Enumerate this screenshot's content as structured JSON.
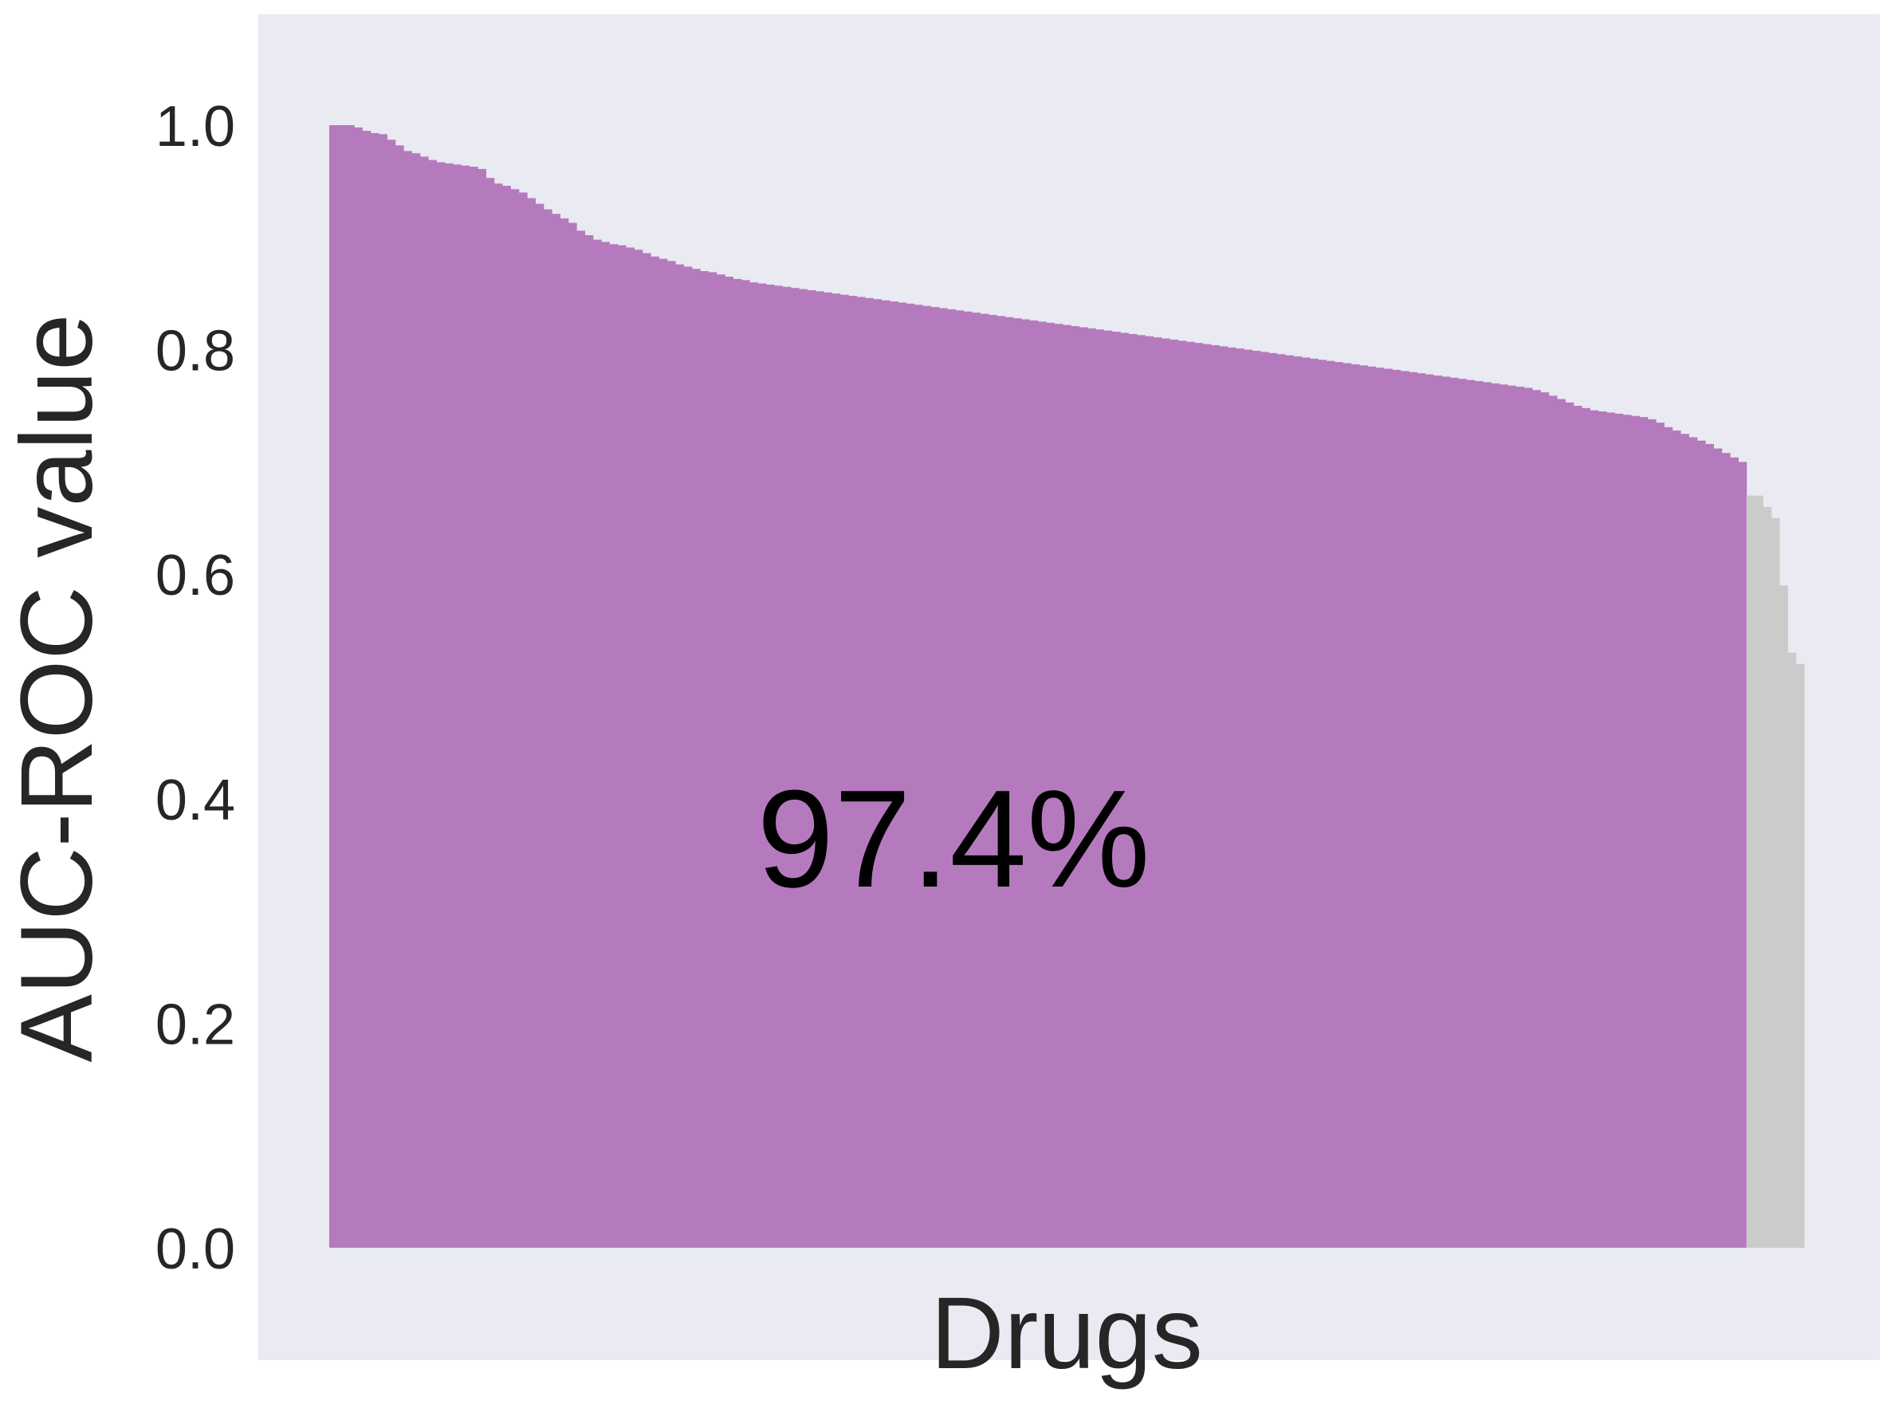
{
  "chart_data": {
    "type": "bar",
    "ylabel": "AUC-ROC value",
    "xlabel": "Drugs",
    "ylim": [
      -0.1,
      1.1
    ],
    "yticks": [
      "0.0",
      "0.2",
      "0.4",
      "0.6",
      "0.8",
      "1.0"
    ],
    "grid": false,
    "annotation": "97.4%",
    "colors": {
      "background": "#EAEAF2",
      "above_threshold": "#B57ABE",
      "below_threshold": "#CBCBCB"
    },
    "series": [
      {
        "values": [
          1.0,
          1.0,
          1.0,
          0.998,
          0.995,
          0.993,
          0.992,
          0.987,
          0.982,
          0.977,
          0.975,
          0.972,
          0.969,
          0.967,
          0.966,
          0.965,
          0.964,
          0.963,
          0.961,
          0.953,
          0.948,
          0.946,
          0.943,
          0.94,
          0.935,
          0.93,
          0.925,
          0.921,
          0.917,
          0.913,
          0.906,
          0.902,
          0.898,
          0.896,
          0.894,
          0.893,
          0.891,
          0.889,
          0.886,
          0.883,
          0.881,
          0.879,
          0.876,
          0.874,
          0.872,
          0.87,
          0.869,
          0.867,
          0.865,
          0.863,
          0.862,
          0.86,
          0.859,
          0.858,
          0.857,
          0.856,
          0.855,
          0.854,
          0.853,
          0.852,
          0.851,
          0.85,
          0.849,
          0.848,
          0.847,
          0.846,
          0.845,
          0.844,
          0.843,
          0.842,
          0.841,
          0.84,
          0.839,
          0.838,
          0.837,
          0.836,
          0.835,
          0.834,
          0.833,
          0.832,
          0.831,
          0.83,
          0.829,
          0.828,
          0.827,
          0.826,
          0.825,
          0.824,
          0.823,
          0.822,
          0.821,
          0.82,
          0.819,
          0.818,
          0.817,
          0.816,
          0.815,
          0.814,
          0.813,
          0.812,
          0.811,
          0.81,
          0.809,
          0.808,
          0.807,
          0.806,
          0.805,
          0.804,
          0.803,
          0.802,
          0.801,
          0.8,
          0.799,
          0.798,
          0.797,
          0.796,
          0.795,
          0.794,
          0.793,
          0.792,
          0.791,
          0.79,
          0.789,
          0.788,
          0.787,
          0.786,
          0.785,
          0.784,
          0.783,
          0.782,
          0.781,
          0.78,
          0.779,
          0.778,
          0.777,
          0.776,
          0.775,
          0.774,
          0.773,
          0.772,
          0.771,
          0.77,
          0.769,
          0.768,
          0.767,
          0.766,
          0.764,
          0.762,
          0.759,
          0.756,
          0.753,
          0.75,
          0.748,
          0.746,
          0.745,
          0.744,
          0.743,
          0.742,
          0.741,
          0.74,
          0.738,
          0.735,
          0.731,
          0.728,
          0.725,
          0.722,
          0.719,
          0.716,
          0.712,
          0.708,
          0.704,
          0.7
        ],
        "color": "#B57ABE"
      },
      {
        "values": [
          0.67,
          0.67,
          0.66,
          0.65,
          0.59,
          0.53,
          0.52
        ],
        "color": "#CBCBCB"
      }
    ]
  }
}
